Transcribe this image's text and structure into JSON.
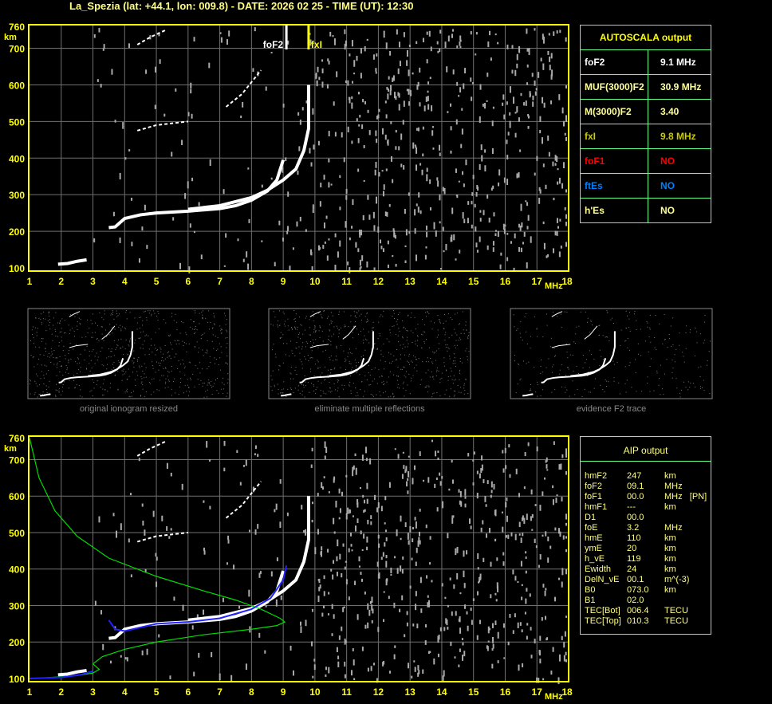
{
  "title": "La_Spezia (lat: +44.1, lon: 009.8) - DATE: 2026 02 25 - TIME (UT): 12:30",
  "colors": {
    "axis": "#ffff00",
    "grid": "#707070",
    "table_border": "#66ff88",
    "o_trace": "#ffffff",
    "profile": "#00dd00",
    "fit": "#2222ff"
  },
  "chart_data": [
    {
      "type": "scatter",
      "name_ref": "ionogram-top",
      "xlabel": "MHz",
      "ylabel": "km",
      "xlim": [
        1,
        18
      ],
      "ylim": [
        100,
        760
      ],
      "xticks": [
        "1",
        "2",
        "3",
        "4",
        "5",
        "6",
        "7",
        "8",
        "9",
        "10",
        "11",
        "12",
        "13",
        "14",
        "15",
        "16",
        "17",
        "18"
      ],
      "yticks": [
        "100",
        "200",
        "300",
        "400",
        "500",
        "600",
        "700",
        "760"
      ],
      "grid": true,
      "markers": [
        {
          "label": "foF2",
          "x": 9.1,
          "color": "#ffffff"
        },
        {
          "label": "fxI",
          "x": 9.8,
          "color": "#ffff00"
        }
      ],
      "traces": {
        "E": [
          [
            1.9,
            110
          ],
          [
            2.2,
            112
          ],
          [
            2.5,
            118
          ],
          [
            2.8,
            122
          ]
        ],
        "O": [
          [
            3.5,
            210
          ],
          [
            3.7,
            212
          ],
          [
            4.0,
            235
          ],
          [
            4.5,
            245
          ],
          [
            5.0,
            250
          ],
          [
            6.0,
            255
          ],
          [
            7.0,
            262
          ],
          [
            7.5,
            270
          ],
          [
            8.0,
            285
          ],
          [
            8.5,
            310
          ],
          [
            8.8,
            340
          ],
          [
            9.0,
            395
          ]
        ],
        "X": [
          [
            6.0,
            260
          ],
          [
            7.0,
            270
          ],
          [
            8.0,
            292
          ],
          [
            8.5,
            312
          ],
          [
            9.0,
            340
          ],
          [
            9.4,
            370
          ],
          [
            9.65,
            420
          ],
          [
            9.8,
            480
          ],
          [
            9.8,
            600
          ]
        ],
        "multiple_1": [
          [
            4.4,
            475
          ],
          [
            5.0,
            490
          ],
          [
            5.5,
            495
          ],
          [
            6.0,
            500
          ]
        ],
        "multiple_2": [
          [
            7.2,
            540
          ],
          [
            7.7,
            575
          ],
          [
            8.3,
            640
          ]
        ],
        "multiple_3": [
          [
            4.4,
            710
          ],
          [
            4.8,
            730
          ],
          [
            5.3,
            750
          ]
        ]
      }
    },
    {
      "type": "scatter",
      "name_ref": "ionogram-bottom",
      "xlabel": "MHz",
      "ylabel": "km",
      "xlim": [
        1,
        18
      ],
      "ylim": [
        100,
        760
      ],
      "grid": true,
      "profile": [
        [
          1,
          760
        ],
        [
          1.3,
          650
        ],
        [
          1.8,
          560
        ],
        [
          2.5,
          490
        ],
        [
          3.5,
          430
        ],
        [
          5,
          380
        ],
        [
          6.5,
          340
        ],
        [
          7.5,
          315
        ],
        [
          8.3,
          290
        ],
        [
          8.9,
          265
        ],
        [
          9.05,
          255
        ],
        [
          8.8,
          245
        ],
        [
          8,
          235
        ],
        [
          6.5,
          220
        ],
        [
          5,
          200
        ],
        [
          4,
          180
        ],
        [
          3.3,
          160
        ],
        [
          3.0,
          140
        ],
        [
          3.2,
          125
        ],
        [
          3.0,
          115
        ],
        [
          2.5,
          108
        ],
        [
          1.5,
          102
        ],
        [
          1,
          100
        ]
      ],
      "fit": [
        [
          1,
          100
        ],
        [
          2,
          103
        ],
        [
          2.6,
          110
        ],
        [
          3.0,
          120
        ]
      ],
      "fit_F": [
        [
          3.5,
          260
        ],
        [
          3.7,
          235
        ],
        [
          4.0,
          230
        ],
        [
          5,
          250
        ],
        [
          6,
          255
        ],
        [
          7,
          265
        ],
        [
          8,
          290
        ],
        [
          8.6,
          320
        ],
        [
          9.0,
          370
        ],
        [
          9.1,
          410
        ]
      ]
    }
  ],
  "autoscala": {
    "header": "AUTOSCALA output",
    "rows": [
      {
        "key": "foF2",
        "value": "9.1 MHz",
        "color": "#ffffff"
      },
      {
        "key": "MUF(3000)F2",
        "value": "30.9 MHz",
        "color": "#ffff99"
      },
      {
        "key": "M(3000)F2",
        "value": "3.40",
        "color": "#ffff99"
      },
      {
        "key": "fxI",
        "value": "9.8 MHz",
        "color": "#cccc00"
      },
      {
        "key": "foF1",
        "value": "NO",
        "color": "#ff0000"
      },
      {
        "key": "ftEs",
        "value": "NO",
        "color": "#0080ff"
      },
      {
        "key": "h'Es",
        "value": "NO",
        "color": "#ffff99"
      }
    ]
  },
  "aip": {
    "header": "AIP output",
    "rows": [
      [
        "hmF2",
        "247",
        "km"
      ],
      [
        "foF2",
        "09.1",
        "MHz"
      ],
      [
        "foF1",
        "00.0",
        "MHz   [PN]"
      ],
      [
        "hmF1",
        "---",
        "km"
      ],
      [
        "D1",
        "00.0",
        ""
      ],
      [
        "foE",
        "3.2",
        "MHz"
      ],
      [
        "hmE",
        "110",
        "km"
      ],
      [
        "ymE",
        "20",
        "km"
      ],
      [
        "h_vE",
        "119",
        "km"
      ],
      [
        "Ewidth",
        "24",
        "km"
      ],
      [
        "DelN_vE",
        "00.1",
        "m^(-3)"
      ],
      [
        "B0",
        "073.0",
        "km"
      ],
      [
        "B1",
        "02.0",
        ""
      ],
      [
        "TEC[Bot]",
        "006.4",
        "TECU"
      ],
      [
        "TEC[Top]",
        "010.3",
        "TECU"
      ]
    ]
  },
  "thumbnails": [
    {
      "caption": "original ionogram resized"
    },
    {
      "caption": "eliminate multiple reflections"
    },
    {
      "caption": "evidence F2 trace"
    }
  ]
}
